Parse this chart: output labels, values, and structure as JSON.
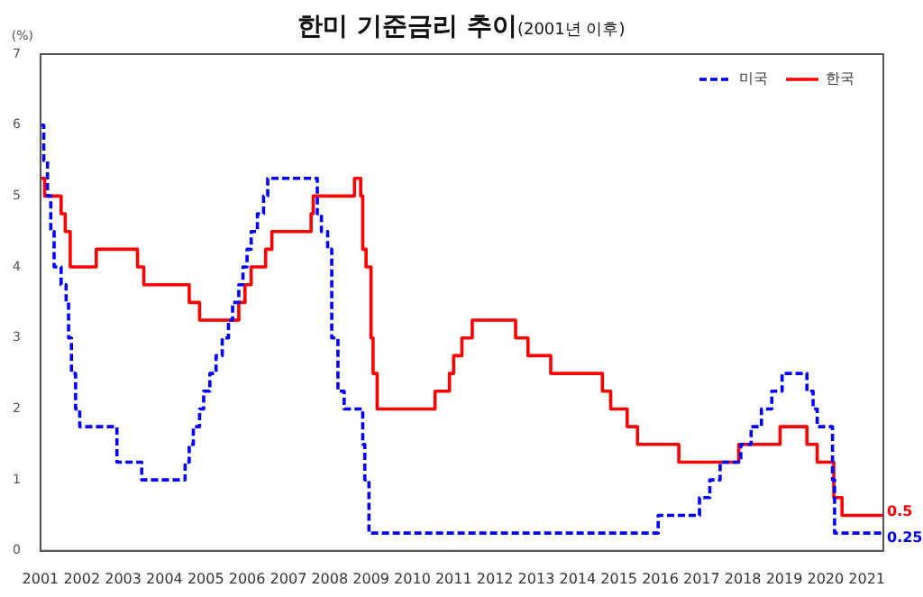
{
  "chart_data": {
    "type": "step",
    "title": "한미 기준금리 추이",
    "subtitle": "(2001년 이후)",
    "ylabel": "(%)",
    "xlim": [
      2001,
      2021.4
    ],
    "xticks": [
      2001,
      2002,
      2003,
      2004,
      2005,
      2006,
      2007,
      2008,
      2009,
      2010,
      2011,
      2012,
      2013,
      2014,
      2015,
      2016,
      2017,
      2018,
      2019,
      2020,
      2021
    ],
    "ylim": [
      0,
      7
    ],
    "yticks": [
      0,
      1,
      2,
      3,
      4,
      5,
      6,
      7
    ],
    "grid": false,
    "legend": "top right",
    "marker": "none",
    "series": [
      {
        "name": "미국",
        "color": "#0000ff",
        "line_style": "dashed",
        "x": [
          2001.0,
          2001.08,
          2001.17,
          2001.25,
          2001.33,
          2001.5,
          2001.62,
          2001.68,
          2001.75,
          2001.85,
          2001.95,
          2002.85,
          2003.45,
          2004.5,
          2004.6,
          2004.7,
          2004.85,
          2004.95,
          2005.1,
          2005.25,
          2005.4,
          2005.55,
          2005.65,
          2005.8,
          2005.9,
          2006.0,
          2006.1,
          2006.25,
          2006.4,
          2006.5,
          2007.7,
          2007.8,
          2007.95,
          2008.05,
          2008.2,
          2008.35,
          2008.8,
          2008.85,
          2008.95,
          2015.95,
          2016.95,
          2017.2,
          2017.45,
          2017.95,
          2018.2,
          2018.45,
          2018.7,
          2018.95,
          2019.55,
          2019.7,
          2019.8,
          2020.17,
          2020.22,
          2021.4
        ],
        "values": [
          6.0,
          5.5,
          5.0,
          4.5,
          4.0,
          3.75,
          3.5,
          3.0,
          2.5,
          2.0,
          1.75,
          1.25,
          1.0,
          1.25,
          1.5,
          1.75,
          2.0,
          2.25,
          2.5,
          2.75,
          3.0,
          3.25,
          3.5,
          3.75,
          4.0,
          4.25,
          4.5,
          4.75,
          5.0,
          5.25,
          4.75,
          4.5,
          4.25,
          3.0,
          2.25,
          2.0,
          1.5,
          1.0,
          0.25,
          0.5,
          0.75,
          1.0,
          1.25,
          1.5,
          1.75,
          2.0,
          2.25,
          2.5,
          2.25,
          2.0,
          1.75,
          1.0,
          0.25,
          0.25
        ]
      },
      {
        "name": "한국",
        "color": "#ff0000",
        "line_style": "solid",
        "x": [
          2001.0,
          2001.1,
          2001.5,
          2001.6,
          2001.72,
          2002.35,
          2003.35,
          2003.5,
          2004.6,
          2004.85,
          2005.8,
          2005.95,
          2006.1,
          2006.45,
          2006.6,
          2007.55,
          2007.6,
          2008.6,
          2008.75,
          2008.8,
          2008.88,
          2009.0,
          2009.05,
          2009.15,
          2010.55,
          2010.9,
          2011.0,
          2011.2,
          2011.45,
          2012.5,
          2012.8,
          2013.35,
          2014.6,
          2014.8,
          2015.2,
          2015.45,
          2016.45,
          2017.9,
          2018.9,
          2019.55,
          2019.8,
          2020.2,
          2020.4,
          2021.4
        ],
        "values": [
          5.25,
          5.0,
          4.75,
          4.5,
          4.0,
          4.25,
          4.0,
          3.75,
          3.5,
          3.25,
          3.5,
          3.75,
          4.0,
          4.25,
          4.5,
          4.75,
          5.0,
          5.25,
          5.0,
          4.25,
          4.0,
          3.0,
          2.5,
          2.0,
          2.25,
          2.5,
          2.75,
          3.0,
          3.25,
          3.0,
          2.75,
          2.5,
          2.25,
          2.0,
          1.75,
          1.5,
          1.25,
          1.5,
          1.75,
          1.5,
          1.25,
          0.75,
          0.5,
          0.5
        ]
      }
    ],
    "annotations": [
      {
        "text": "0.5",
        "x": 2021.4,
        "y": 0.5
      },
      {
        "text": "0.25",
        "x": 2021.4,
        "y": 0.25
      }
    ]
  }
}
